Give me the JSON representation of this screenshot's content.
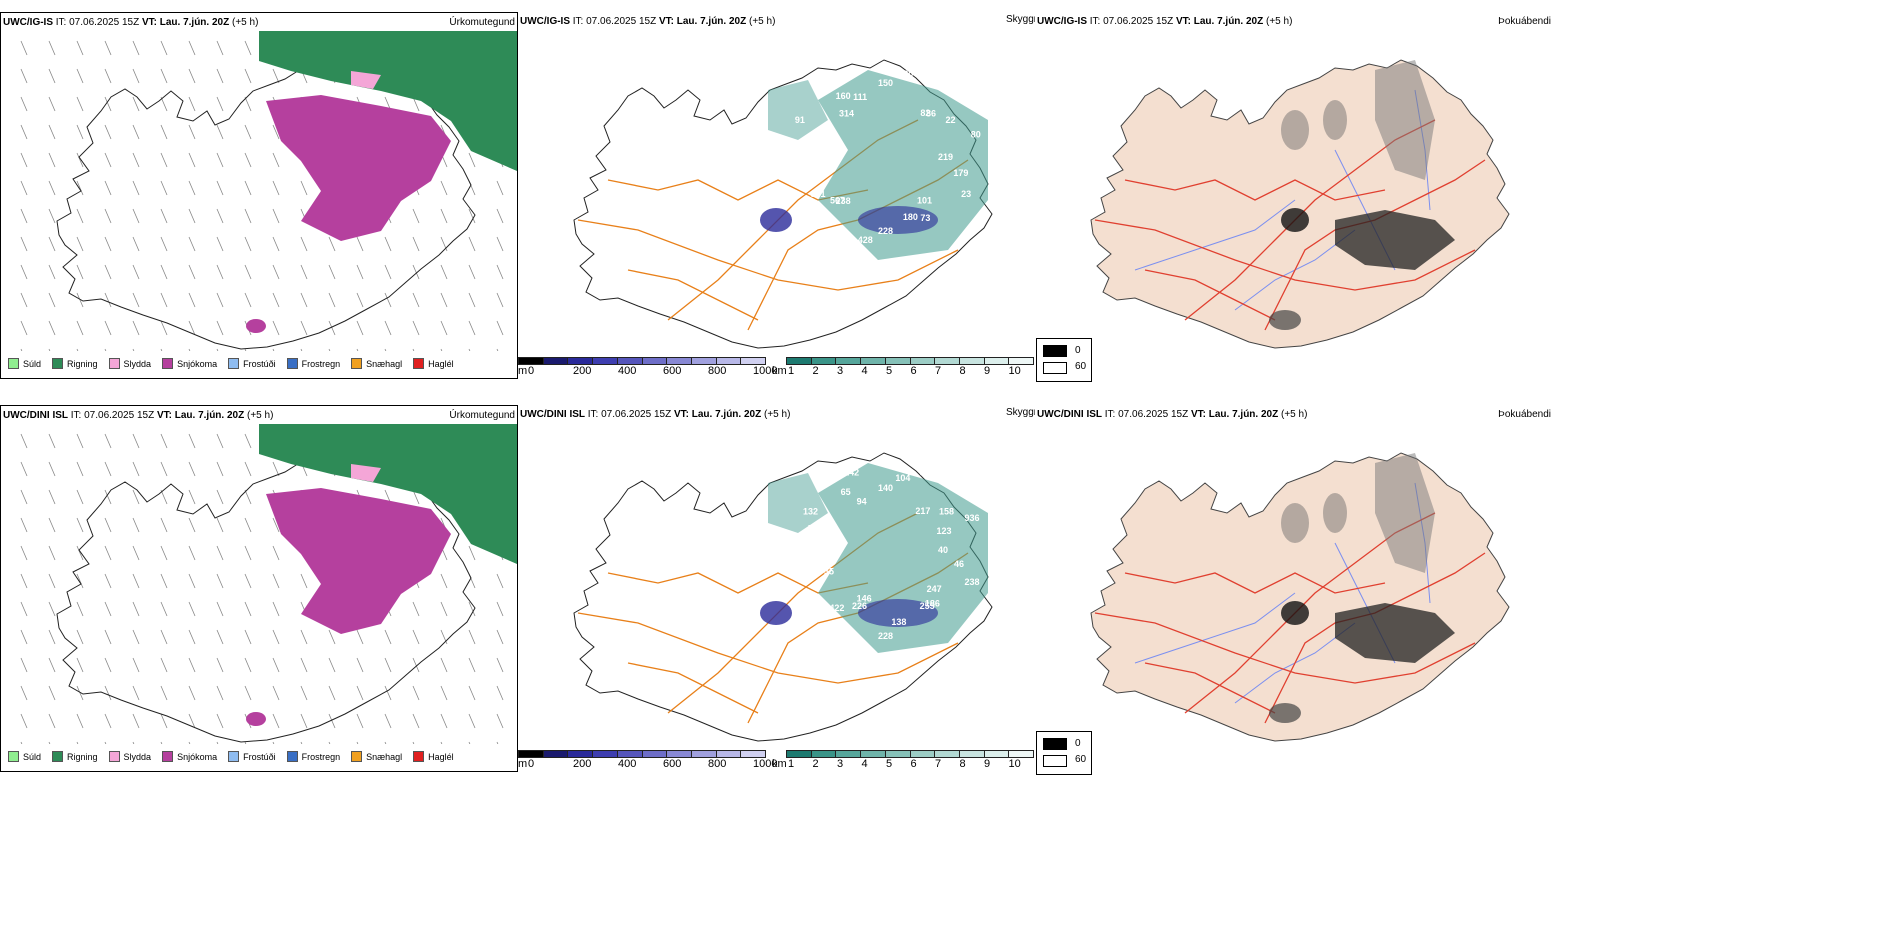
{
  "rows": [
    {
      "model": "UWC/IG-IS",
      "it": "IT: 07.06.2025 15Z",
      "vt_label": "VT:",
      "vt_value": "Lau. 7.jún. 20Z",
      "offset": "(+5 h)",
      "cloud_labels": [
        "219",
        "179",
        "23",
        "73",
        "101",
        "180",
        "228",
        "428",
        "567",
        "238",
        "331",
        "133",
        "65",
        "184",
        "91",
        "160",
        "314",
        "111",
        "150",
        "230",
        "86",
        "82",
        "22",
        "80"
      ]
    },
    {
      "model": "UWC/DINI ISL",
      "it": "IT: 07.06.2025 15Z",
      "vt_label": "VT:",
      "vt_value": "Lau. 7.jún. 20Z",
      "offset": "(+5 h)",
      "cloud_labels": [
        "40",
        "46",
        "238",
        "186",
        "247",
        "255",
        "138",
        "228",
        "146",
        "226",
        "422",
        "563",
        "35",
        "180",
        "118",
        "776",
        "57",
        "132",
        "65",
        "142",
        "94",
        "140",
        "104",
        "88",
        "217",
        "158",
        "936",
        "123"
      ]
    }
  ],
  "precip_title": "Úrkomutegund",
  "sky_title": "Skyggni",
  "fog_title": "Þokuábendi",
  "precip_legend": [
    {
      "label": "Súld",
      "color": "#90ee90"
    },
    {
      "label": "Rigning",
      "color": "#2e8b57"
    },
    {
      "label": "Slydda",
      "color": "#f4a6d7"
    },
    {
      "label": "Snjókoma",
      "color": "#b5409e"
    },
    {
      "label": "Frostúði",
      "color": "#8fbcf0"
    },
    {
      "label": "Frostregn",
      "color": "#3a6fc4"
    },
    {
      "label": "Snæhagl",
      "color": "#f0a020"
    },
    {
      "label": "Haglél",
      "color": "#e02020"
    }
  ],
  "m_scale": {
    "unit": "m",
    "ticks": [
      "0",
      "200",
      "400",
      "600",
      "800",
      "1000"
    ]
  },
  "km_scale": {
    "unit": "km",
    "ticks": [
      "1",
      "2",
      "3",
      "4",
      "5",
      "6",
      "7",
      "8",
      "9",
      "10"
    ]
  },
  "fog_scale": {
    "ticks": [
      "0",
      "60"
    ]
  },
  "colors": {
    "land_fog": "#f4dfd0",
    "road_orange": "#e8801a",
    "road_red": "#e04030",
    "river_blue": "#7b8ff0",
    "rain": "#2e8b57",
    "snow": "#b5409e",
    "sleet": "#f4a6d7",
    "teal": "#3f9a8e",
    "blue": "#2a2a9a"
  }
}
